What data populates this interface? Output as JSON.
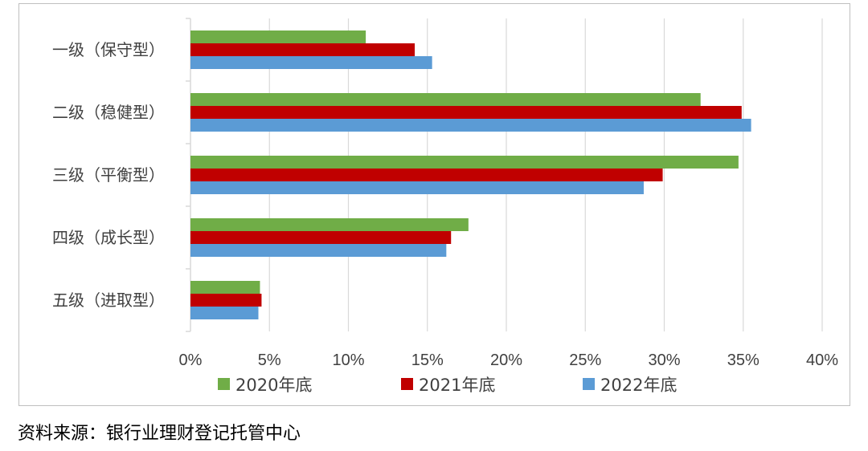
{
  "chart_data": {
    "type": "bar",
    "orientation": "horizontal",
    "categories": [
      "一级（保守型）",
      "二级（稳健型）",
      "三级（平衡型）",
      "四级（成长型）",
      "五级（进取型）"
    ],
    "series": [
      {
        "name": "2020年底",
        "color": "#70ad47",
        "values": [
          11.1,
          32.3,
          34.7,
          17.6,
          4.4
        ]
      },
      {
        "name": "2021年底",
        "color": "#c00000",
        "values": [
          14.2,
          34.9,
          29.9,
          16.5,
          4.5
        ]
      },
      {
        "name": "2022年底",
        "color": "#5b9bd5",
        "values": [
          15.3,
          35.5,
          28.7,
          16.2,
          4.3
        ]
      }
    ],
    "xlim": [
      0,
      40
    ],
    "xticks": [
      "0%",
      "5%",
      "10%",
      "15%",
      "20%",
      "25%",
      "30%",
      "35%",
      "40%"
    ],
    "grid": true,
    "legend_position": "bottom"
  },
  "source_text": "资料来源：银行业理财登记托管中心"
}
